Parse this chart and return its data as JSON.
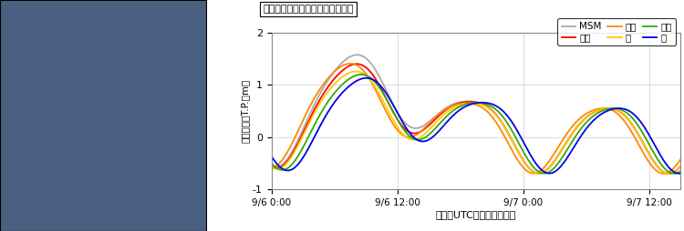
{
  "title": "対象地点：志布志湾（鹿児島県）",
  "xlabel": "時刻（UTC：協定世界時）",
  "ylabel": "予測潮位（T.P.＋m）",
  "ylim": [
    -1,
    2
  ],
  "yticks": [
    -1,
    0,
    1,
    2
  ],
  "xtick_labels": [
    "9/6 0:00",
    "9/6 12:00",
    "9/7 0:00",
    "9/7 12:00"
  ],
  "xtick_hours": [
    0,
    12,
    24,
    36
  ],
  "xlim": [
    0,
    39
  ],
  "colors": {
    "MSM": "#aaaaaa",
    "chushin": "#ff0000",
    "hayai": "#ff8800",
    "migi": "#ffcc00",
    "osoi": "#33aa00",
    "hidari": "#0000ee"
  },
  "legend_labels": [
    "MSM",
    "中心",
    "速い",
    "右",
    "遅い",
    "左"
  ],
  "bg_color": "#ffffff",
  "grid_color": "#cccccc",
  "map_bg": "#dddddd",
  "linewidth": 1.3
}
